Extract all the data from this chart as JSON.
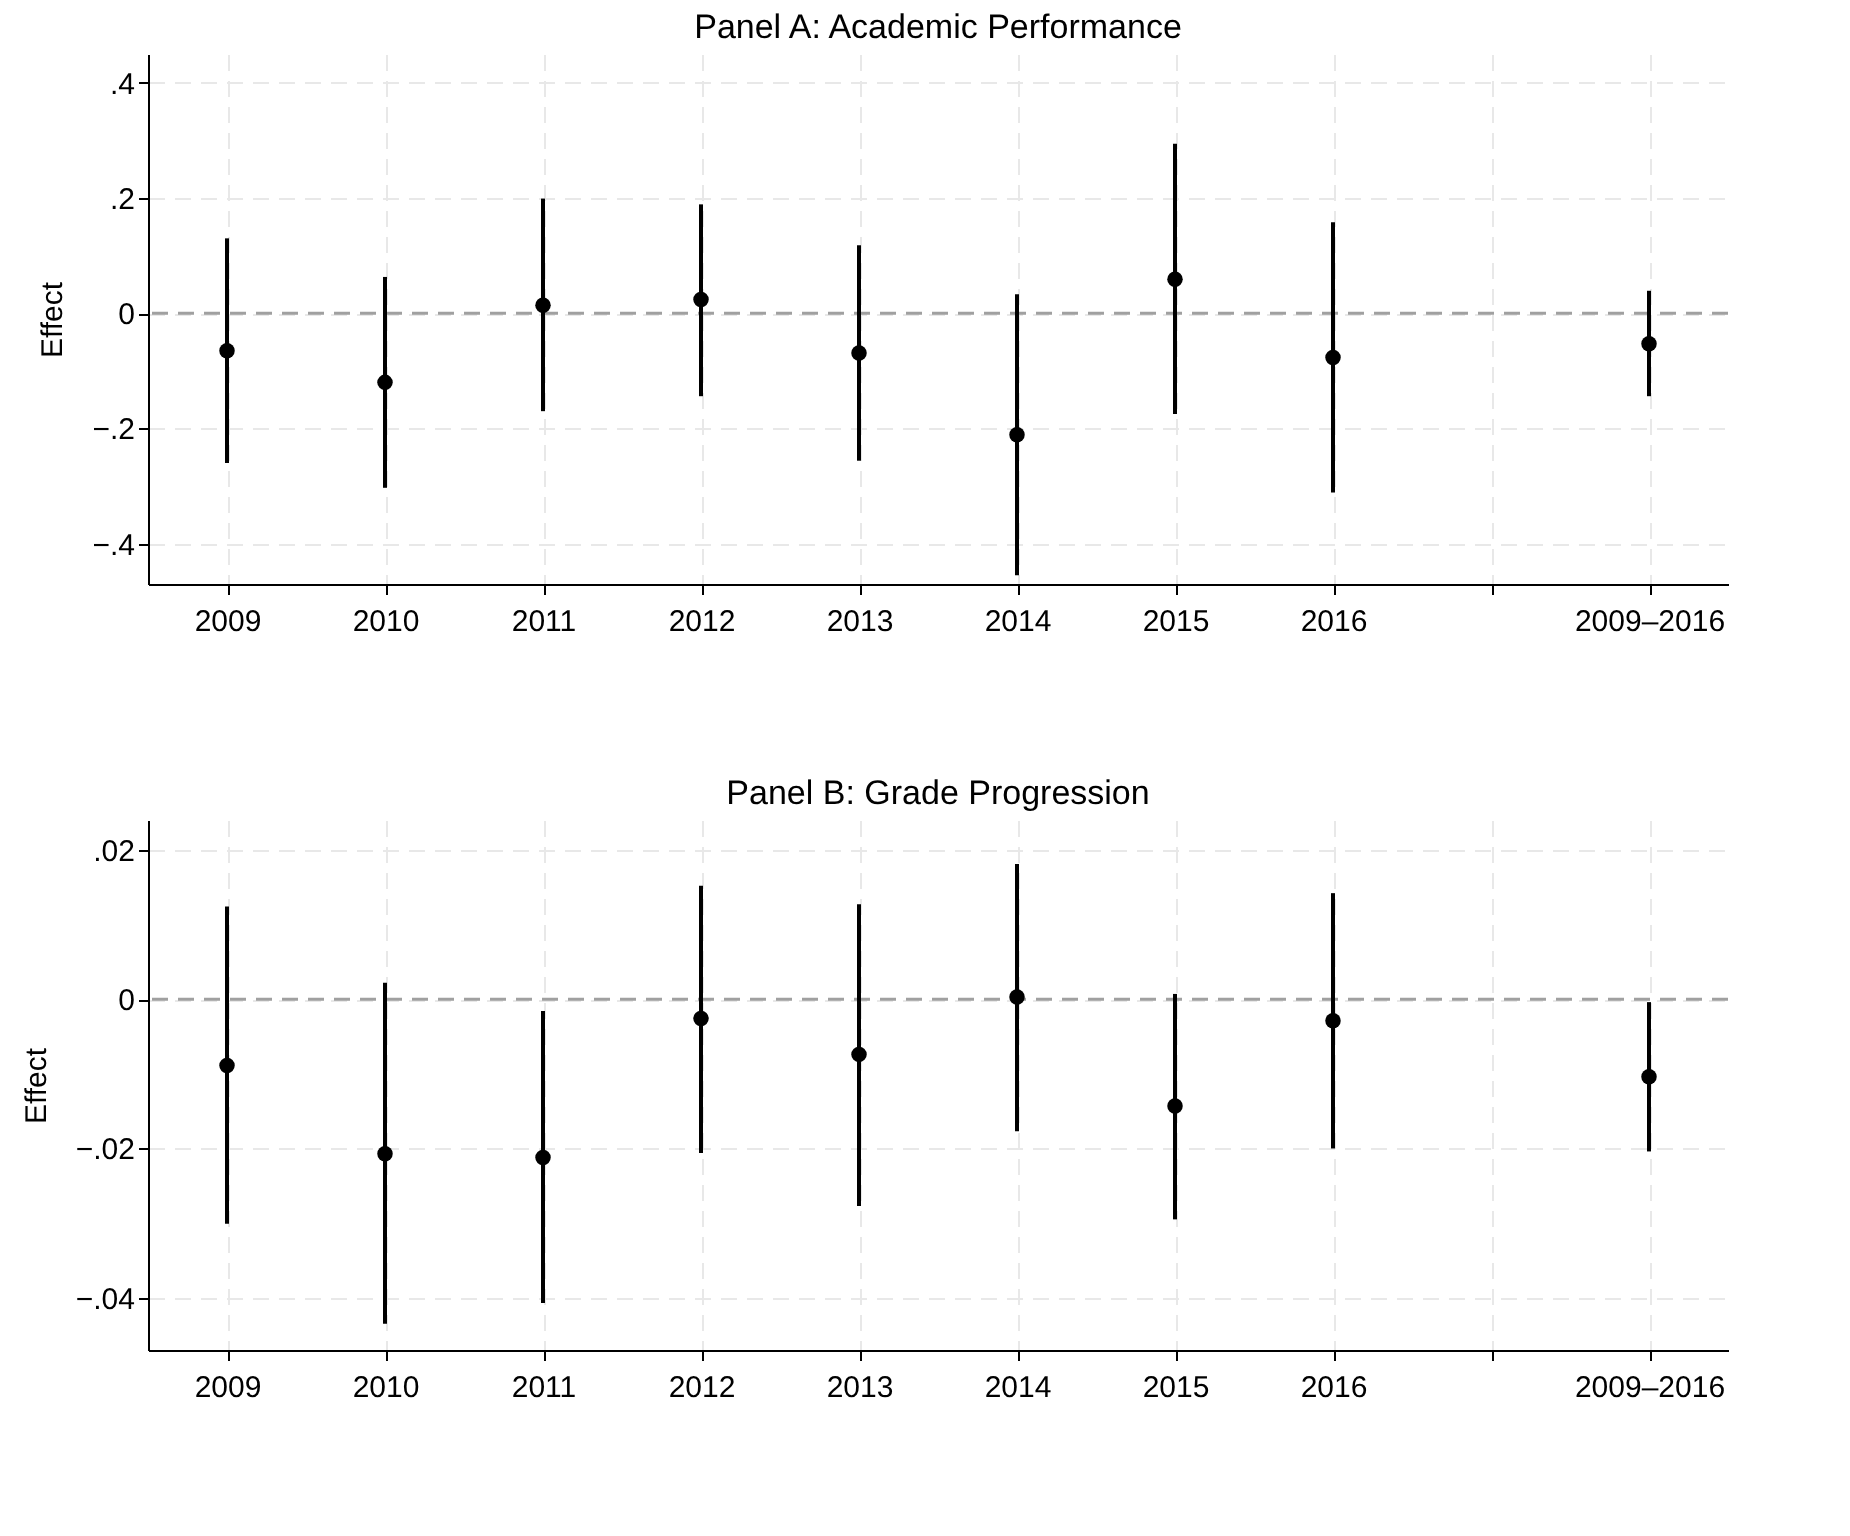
{
  "chart_data": [
    {
      "type": "scatter",
      "title": "Panel A: Academic Performance",
      "ylabel": "Effect",
      "categories": [
        "2009",
        "2010",
        "2011",
        "2012",
        "2013",
        "2014",
        "2015",
        "2016",
        null,
        "2009–2016"
      ],
      "series": [
        {
          "color": "#000000",
          "values": [
            -0.065,
            -0.12,
            0.014,
            0.024,
            -0.069,
            -0.211,
            0.059,
            -0.077,
            null,
            -0.053
          ],
          "errors": [
            [
              -0.26,
              0.13
            ],
            [
              -0.303,
              0.063
            ],
            [
              -0.17,
              0.199
            ],
            [
              -0.144,
              0.189
            ],
            [
              -0.256,
              0.118
            ],
            [
              -0.455,
              0.033
            ],
            [
              -0.175,
              0.294
            ],
            [
              -0.311,
              0.158
            ],
            null,
            [
              -0.144,
              0.039
            ]
          ]
        }
      ],
      "ylim": [
        -0.47,
        0.45
      ],
      "yticks": [
        {
          "value": -0.4,
          "label": "−.4"
        },
        {
          "value": -0.2,
          "label": "−.2"
        },
        0,
        {
          "value": 0.2,
          "label": ".2"
        },
        {
          "value": 0.4,
          "label": ".4"
        }
      ],
      "ref_lines": [
        {
          "axis": "y",
          "value": 0,
          "color": "#a0a0a0",
          "line_style": "dashed"
        }
      ],
      "grid": true,
      "marker": "circle"
    },
    {
      "type": "scatter",
      "title": "Panel B: Grade Progression",
      "ylabel": "Effect",
      "categories": [
        "2009",
        "2010",
        "2011",
        "2012",
        "2013",
        "2014",
        "2015",
        "2016",
        null,
        "2009–2016"
      ],
      "series": [
        {
          "color": "#000000",
          "values": [
            -0.0089,
            -0.0207,
            -0.0212,
            -0.0026,
            -0.0074,
            0.0003,
            -0.0143,
            -0.0029,
            null,
            -0.0104
          ],
          "errors": [
            [
              -0.0301,
              0.0124
            ],
            [
              -0.0435,
              0.0022
            ],
            [
              -0.0407,
              -0.0016
            ],
            [
              -0.0206,
              0.0152
            ],
            [
              -0.0277,
              0.0127
            ],
            [
              -0.0177,
              0.0181
            ],
            [
              -0.0295,
              0.0007
            ],
            [
              -0.02,
              0.0142
            ],
            null,
            [
              -0.0204,
              -0.0004
            ]
          ]
        }
      ],
      "ylim": [
        -0.047,
        0.024
      ],
      "yticks": [
        {
          "value": -0.04,
          "label": "−.04"
        },
        {
          "value": -0.02,
          "label": "−.02"
        },
        0,
        {
          "value": 0.02,
          "label": ".02"
        }
      ],
      "ref_lines": [
        {
          "axis": "y",
          "value": 0,
          "color": "#a0a0a0",
          "line_style": "dashed"
        }
      ],
      "grid": true,
      "marker": "circle"
    }
  ]
}
